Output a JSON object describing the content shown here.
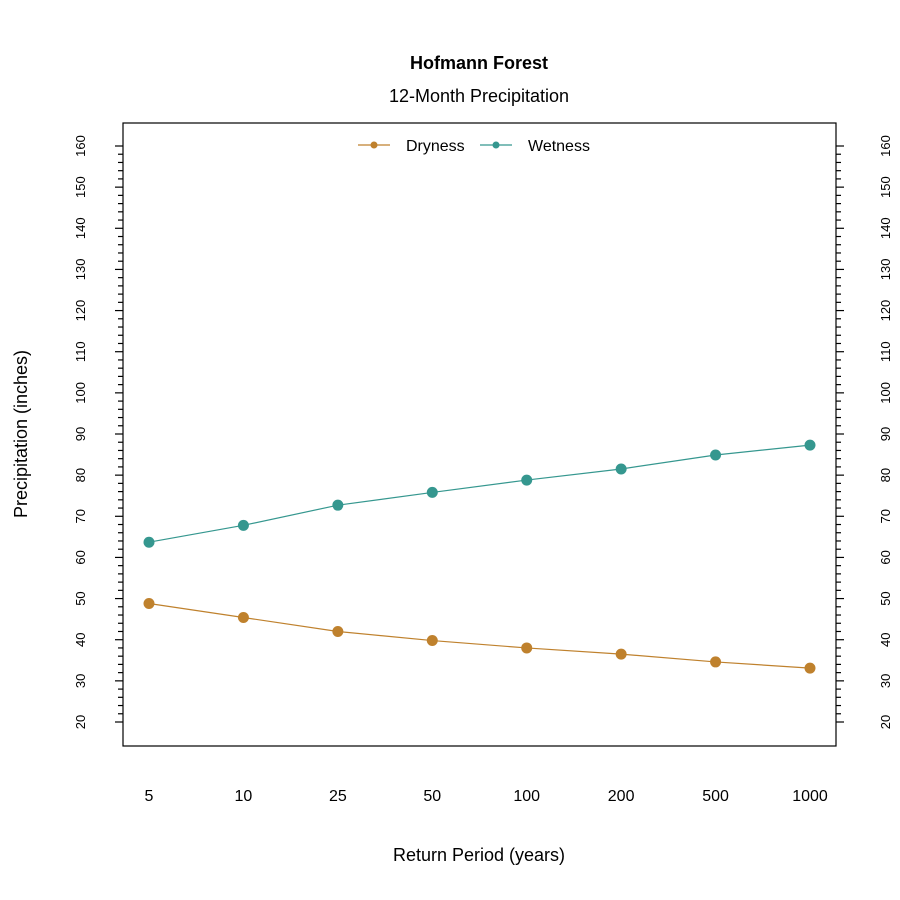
{
  "chart_data": {
    "type": "line",
    "title": "Hofmann Forest",
    "subtitle": "12-Month Precipitation",
    "xlabel": "Return Period (years)",
    "ylabel": "Precipitation (inches)",
    "categories": [
      "5",
      "10",
      "25",
      "50",
      "100",
      "200",
      "500",
      "1000"
    ],
    "ylim": [
      20,
      160
    ],
    "y_ticks": [
      "20",
      "30",
      "40",
      "50",
      "60",
      "70",
      "80",
      "90",
      "100",
      "110",
      "120",
      "130",
      "140",
      "150",
      "160"
    ],
    "y_minor_step": 2,
    "grid": false,
    "legend_placement": "top",
    "series": [
      {
        "name": "Dryness",
        "color": "#bf812d",
        "values": [
          48.8,
          45.4,
          42.0,
          39.8,
          38.0,
          36.5,
          34.6,
          33.1
        ]
      },
      {
        "name": "Wetness",
        "color": "#35978f",
        "values": [
          63.7,
          67.8,
          72.7,
          75.8,
          78.8,
          81.5,
          84.9,
          87.3
        ]
      }
    ]
  }
}
